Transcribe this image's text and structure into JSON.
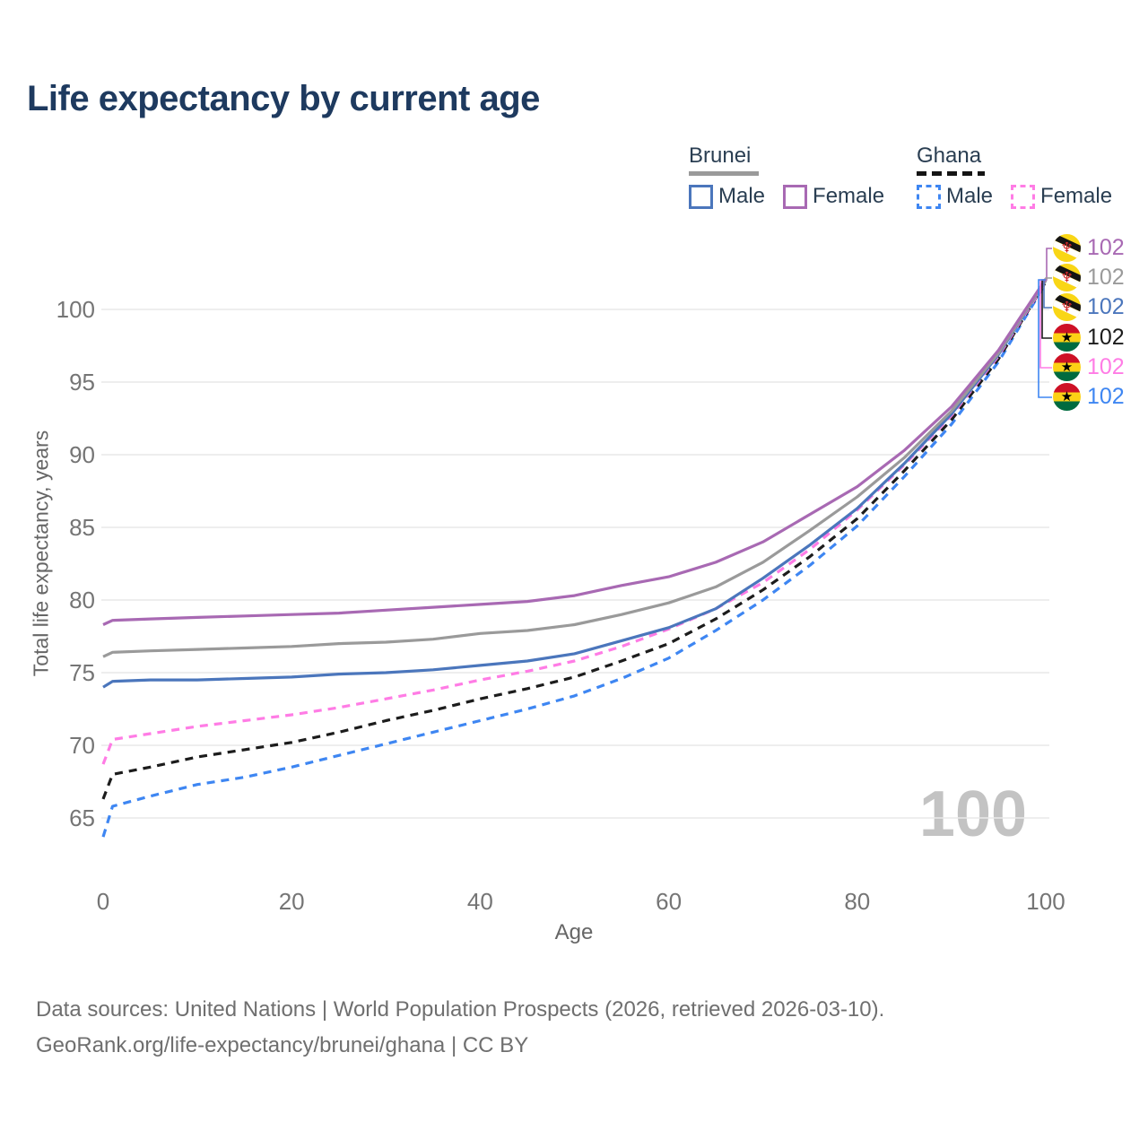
{
  "title": "Life expectancy by current age",
  "watermark": "100",
  "colors": {
    "brunei_male": "#4b76bc",
    "brunei_female": "#a869b3",
    "brunei_total": "#9a9a9a",
    "ghana_male": "#3e86f2",
    "ghana_female": "#ff7ce5",
    "ghana_total": "#1c1c1c",
    "title_text": "#1e3a5f",
    "axis_text": "#757575",
    "gridline": "#e9e9e9",
    "watermark_text": "#c3c3c3"
  },
  "legend": {
    "groups": [
      {
        "name": "Brunei",
        "underline_style": "solid",
        "underline_color": "#9a9a9a",
        "items": [
          {
            "label": "Male",
            "color": "#4b76bc",
            "dashed": false
          },
          {
            "label": "Female",
            "color": "#a869b3",
            "dashed": false
          }
        ]
      },
      {
        "name": "Ghana",
        "underline_style": "dashed",
        "underline_color": "#141414",
        "items": [
          {
            "label": "Male",
            "color": "#3e86f2",
            "dashed": true
          },
          {
            "label": "Female",
            "color": "#ff7ce5",
            "dashed": true
          }
        ]
      }
    ]
  },
  "chart_data": {
    "type": "line",
    "title": "Life expectancy by current age",
    "xlabel": "Age",
    "ylabel": "Total life expectancy, years",
    "x_ticks": [
      0,
      20,
      40,
      60,
      80,
      100
    ],
    "y_ticks": [
      65,
      70,
      75,
      80,
      85,
      90,
      95,
      100
    ],
    "xlim": [
      0,
      100
    ],
    "ylim": [
      63,
      104
    ],
    "grid": "horizontal",
    "legend_position": "top-right",
    "x": [
      0,
      1,
      5,
      10,
      15,
      20,
      25,
      30,
      35,
      40,
      45,
      50,
      55,
      60,
      65,
      70,
      75,
      80,
      85,
      90,
      95,
      100
    ],
    "series": [
      {
        "name": "Ghana Male",
        "color": "#3e86f2",
        "dashed": true,
        "values": [
          63.7,
          65.8,
          66.5,
          67.3,
          67.8,
          68.5,
          69.3,
          70.1,
          70.9,
          71.7,
          72.5,
          73.4,
          74.6,
          76.0,
          77.9,
          80.0,
          82.4,
          85.1,
          88.5,
          92.1,
          96.4,
          101.8
        ]
      },
      {
        "name": "Ghana",
        "color": "#1c1c1c",
        "dashed": true,
        "values": [
          66.3,
          68.0,
          68.5,
          69.2,
          69.7,
          70.2,
          70.9,
          71.7,
          72.4,
          73.2,
          73.9,
          74.7,
          75.8,
          77.0,
          78.7,
          80.7,
          83.0,
          85.6,
          88.9,
          92.4,
          96.6,
          101.9
        ]
      },
      {
        "name": "Ghana Female",
        "color": "#ff7ce5",
        "dashed": true,
        "values": [
          68.7,
          70.4,
          70.8,
          71.3,
          71.7,
          72.1,
          72.6,
          73.2,
          73.8,
          74.5,
          75.1,
          75.8,
          76.8,
          78.0,
          79.4,
          81.2,
          83.5,
          86.2,
          89.3,
          92.7,
          96.8,
          101.9
        ]
      },
      {
        "name": "Brunei Male",
        "color": "#4b76bc",
        "dashed": false,
        "values": [
          74.0,
          74.4,
          74.5,
          74.5,
          74.6,
          74.7,
          74.9,
          75.0,
          75.2,
          75.5,
          75.8,
          76.3,
          77.2,
          78.1,
          79.4,
          81.5,
          83.8,
          86.3,
          89.4,
          92.8,
          96.9,
          102.0
        ]
      },
      {
        "name": "Brunei",
        "color": "#9a9a9a",
        "dashed": false,
        "values": [
          76.1,
          76.4,
          76.5,
          76.6,
          76.7,
          76.8,
          77.0,
          77.1,
          77.3,
          77.7,
          77.9,
          78.3,
          79.0,
          79.8,
          80.9,
          82.6,
          84.8,
          87.1,
          89.8,
          93.0,
          97.0,
          102.0
        ]
      },
      {
        "name": "Brunei Female",
        "color": "#a869b3",
        "dashed": false,
        "values": [
          78.3,
          78.6,
          78.7,
          78.8,
          78.9,
          79.0,
          79.1,
          79.3,
          79.5,
          79.7,
          79.9,
          80.3,
          81.0,
          81.6,
          82.6,
          84.0,
          85.9,
          87.8,
          90.3,
          93.3,
          97.2,
          102.1
        ]
      }
    ],
    "end_labels": [
      {
        "icon": "brunei-flag-icon",
        "flag": "brunei",
        "text": "102",
        "color": "#a869b3"
      },
      {
        "icon": "brunei-flag-icon",
        "flag": "brunei",
        "text": "102",
        "color": "#9a9a9a"
      },
      {
        "icon": "brunei-flag-icon",
        "flag": "brunei",
        "text": "102",
        "color": "#4b76bc"
      },
      {
        "icon": "ghana-flag-icon",
        "flag": "ghana",
        "text": "102",
        "color": "#1c1c1c"
      },
      {
        "icon": "ghana-flag-icon",
        "flag": "ghana",
        "text": "102",
        "color": "#ff7ce5"
      },
      {
        "icon": "ghana-flag-icon",
        "flag": "ghana",
        "text": "102",
        "color": "#3e86f2"
      }
    ]
  },
  "footer": {
    "line1": "Data sources: United Nations | World Population Prospects (2026, retrieved 2026-03-10).",
    "line2": "GeoRank.org/life-expectancy/brunei/ghana | CC BY"
  }
}
